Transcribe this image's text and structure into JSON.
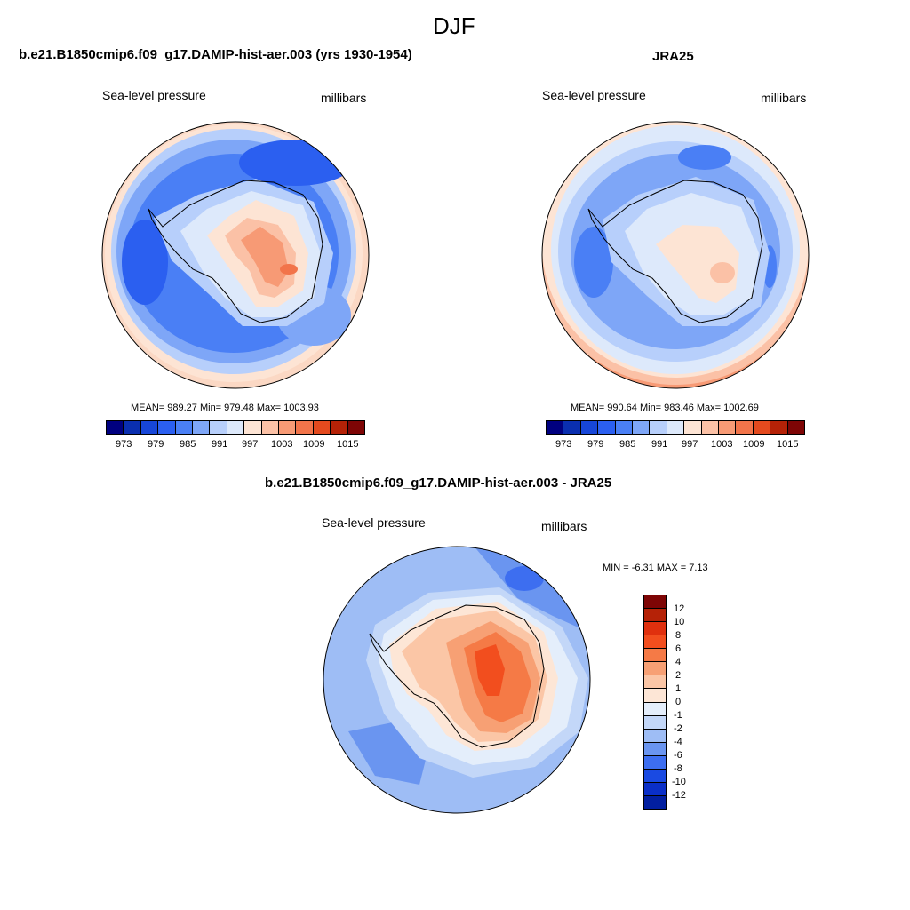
{
  "header": {
    "title": "DJF"
  },
  "panel_model": {
    "title": "b.e21.B1850cmip6.f09_g17.DAMIP-hist-aer.003 (yrs 1930-1954)",
    "field": "Sea-level pressure",
    "units": "millibars",
    "stats": "MEAN= 989.27  Min= 979.48  Max= 1003.93"
  },
  "panel_obs": {
    "title": "JRA25",
    "field": "Sea-level pressure",
    "units": "millibars",
    "stats": "MEAN= 990.64  Min= 983.46  Max= 1002.69"
  },
  "panel_diff": {
    "title": "b.e21.B1850cmip6.f09_g17.DAMIP-hist-aer.003 - JRA25",
    "field": "Sea-level pressure",
    "units": "millibars",
    "stats": "MIN =  -6.31 MAX =   7.13"
  },
  "colorbar_main": {
    "colors": [
      "#000080",
      "#0a2fb0",
      "#1746d8",
      "#2b5ff0",
      "#4a7ff5",
      "#7ea6f7",
      "#b7cffb",
      "#dde9fb",
      "#fde4d4",
      "#fbc1a6",
      "#f79a75",
      "#f2744a",
      "#e44a1e",
      "#b52207",
      "#7e0505"
    ],
    "labels": [
      "973",
      "979",
      "985",
      "991",
      "997",
      "1003",
      "1009",
      "1015"
    ]
  },
  "colorbar_diff": {
    "colors": [
      "#7e0505",
      "#b52207",
      "#e0300e",
      "#f24e1e",
      "#f57a46",
      "#f7a074",
      "#fbc6a6",
      "#fde6d6",
      "#e4eefb",
      "#c3d7f8",
      "#9ebdf5",
      "#6a95f0",
      "#3d6ef0",
      "#1a4ae2",
      "#0a2fc8",
      "#021fa0",
      "#000080"
    ],
    "labels": [
      "12",
      "10",
      "8",
      "6",
      "4",
      "2",
      "1",
      "0",
      "-1",
      "-2",
      "-4",
      "-6",
      "-8",
      "-10",
      "-12"
    ]
  }
}
